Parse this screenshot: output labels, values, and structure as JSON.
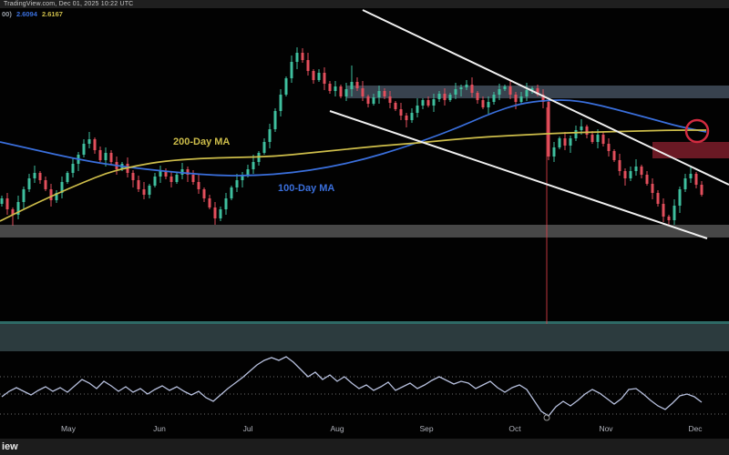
{
  "header": {
    "timestamp": "TradingView.com, Dec 01, 2025 10:22 UTC"
  },
  "legend": {
    "prefix": "00)",
    "ma100_value": "2.6094",
    "ma200_value": "2.6167"
  },
  "labels": {
    "ma200": "200-Day MA",
    "ma100": "100-Day MA"
  },
  "footer": {
    "watermark": "iew"
  },
  "colors": {
    "background": "#020202",
    "bar": "#1f1f1f",
    "candle_up": "#3fbf9e",
    "candle_down": "#e24f5c",
    "ma100": "#3a6fdc",
    "ma200": "#cdbd4a",
    "trendline": "#f0f0f0",
    "event_vline": "#e0404a",
    "highlight_circle": "#d22b40",
    "zone_grey_upper": "#3e4956",
    "zone_red": "#701a26",
    "zone_grey_mid": "#4b4b4b",
    "zone_teal": "#2c3b3e",
    "zone_teal_edge": "#2e6a66",
    "rsi_line": "#b7c0de",
    "rsi_band": "#6f6f6f",
    "axis_text": "#b0b3bc"
  },
  "chart_data": {
    "type": "candlestick",
    "title": "Daily crypto price chart (TradingView dark theme) with 100/200-day moving averages, descending trendlines, supply/demand zones and RSI sub-panel",
    "units": "pixel coordinates of 800x500 screenshot; y increases downward; no numeric price axis is visible",
    "price_panel": {
      "x_range": [
        0,
        800
      ],
      "y_range": [
        11,
        372
      ]
    },
    "candles": {
      "x_start": 2,
      "x_step": 6,
      "body_width": 3,
      "close_y": [
        218,
        230,
        236,
        222,
        208,
        196,
        190,
        198,
        208,
        220,
        212,
        200,
        190,
        180,
        170,
        158,
        153,
        165,
        176,
        168,
        178,
        186,
        180,
        190,
        198,
        208,
        214,
        204,
        194,
        188,
        194,
        200,
        192,
        186,
        192,
        200,
        208,
        218,
        228,
        240,
        230,
        218,
        206,
        198,
        192,
        186,
        178,
        168,
        156,
        142,
        122,
        104,
        86,
        68,
        58,
        66,
        78,
        88,
        80,
        92,
        100,
        95,
        106,
        98,
        90,
        97,
        106,
        114,
        107,
        100,
        106,
        113,
        120,
        127,
        132,
        124,
        116,
        110,
        116,
        109,
        103,
        110,
        104,
        98,
        96,
        93,
        102,
        110,
        118,
        112,
        104,
        98,
        95,
        104,
        112,
        106,
        99,
        97,
        104,
        112,
        172,
        162,
        152,
        160,
        152,
        143,
        139,
        148,
        156,
        148,
        158,
        166,
        176,
        188,
        196,
        188,
        183,
        192,
        202,
        212,
        224,
        238,
        242,
        226,
        208,
        196,
        191,
        203,
        214
      ],
      "rule": "open = previous close; wick lengths cycle through wick_up/wick_down patterns",
      "wick_up": [
        3,
        6,
        2,
        7,
        3,
        5,
        8,
        2,
        4,
        6
      ],
      "wick_down": [
        4,
        2,
        7,
        3,
        6,
        2,
        5,
        8,
        3,
        5
      ],
      "overrides": {
        "2": {
          "low": 248
        },
        "54": {
          "high": 52
        },
        "64": {
          "high": 72
        },
        "100": {
          "high": 108,
          "low": 176
        },
        "122": {
          "low": 247
        }
      }
    },
    "ma100_path": [
      [
        0,
        156
      ],
      [
        40,
        165
      ],
      [
        80,
        174
      ],
      [
        120,
        181
      ],
      [
        160,
        186
      ],
      [
        200,
        190
      ],
      [
        240,
        193
      ],
      [
        280,
        193
      ],
      [
        320,
        190
      ],
      [
        360,
        184
      ],
      [
        400,
        175
      ],
      [
        440,
        163
      ],
      [
        480,
        149
      ],
      [
        510,
        137
      ],
      [
        540,
        124
      ],
      [
        570,
        114
      ],
      [
        600,
        110
      ],
      [
        630,
        110
      ],
      [
        660,
        116
      ],
      [
        690,
        124
      ],
      [
        720,
        132
      ],
      [
        745,
        139
      ],
      [
        775,
        145
      ]
    ],
    "ma200_path": [
      [
        0,
        243
      ],
      [
        30,
        228
      ],
      [
        60,
        214
      ],
      [
        90,
        201
      ],
      [
        120,
        189
      ],
      [
        150,
        182
      ],
      [
        180,
        177
      ],
      [
        220,
        174
      ],
      [
        260,
        173
      ],
      [
        300,
        172
      ],
      [
        340,
        168
      ],
      [
        380,
        164
      ],
      [
        420,
        160
      ],
      [
        460,
        157
      ],
      [
        500,
        153
      ],
      [
        540,
        150
      ],
      [
        580,
        148
      ],
      [
        620,
        146
      ],
      [
        660,
        145
      ],
      [
        700,
        144
      ],
      [
        740,
        143
      ],
      [
        775,
        143
      ]
    ],
    "trendlines": [
      {
        "name": "upper-descending",
        "x1": 398,
        "y1": 11,
        "x2": 800,
        "y2": 203
      },
      {
        "name": "lower-descending",
        "x1": 362,
        "y1": 122,
        "x2": 776,
        "y2": 262
      }
    ],
    "zones": [
      {
        "name": "resistance-zone-upper",
        "x1": 380,
        "x2": 800,
        "y1": 94,
        "y2": 108,
        "color_key": "zone_grey_upper",
        "opacity": 0.9
      },
      {
        "name": "supply-zone-red",
        "x1": 716,
        "x2": 800,
        "y1": 156,
        "y2": 174,
        "color_key": "zone_red",
        "opacity": 0.95
      },
      {
        "name": "support-zone-mid",
        "x1": 0,
        "x2": 800,
        "y1": 247,
        "y2": 261,
        "color_key": "zone_grey_mid",
        "opacity": 0.95
      },
      {
        "name": "demand-zone-teal",
        "x1": 0,
        "x2": 800,
        "y1": 356,
        "y2": 386,
        "color_key": "zone_teal",
        "opacity": 1,
        "top_edge": {
          "y1": 353,
          "y2": 356,
          "color_key": "zone_teal_edge"
        }
      }
    ],
    "event_vline": {
      "x": 600,
      "y1": 118,
      "y2": 356
    },
    "highlight_circle": {
      "cx": 765,
      "cy": 144,
      "r": 12
    },
    "rsi": {
      "x_start": 2,
      "x_step": 8,
      "y": [
        436,
        430,
        426,
        430,
        434,
        429,
        425,
        430,
        426,
        431,
        424,
        417,
        421,
        427,
        419,
        424,
        430,
        425,
        431,
        427,
        433,
        428,
        424,
        429,
        425,
        430,
        434,
        430,
        437,
        441,
        434,
        427,
        421,
        415,
        408,
        401,
        396,
        393,
        396,
        392,
        398,
        406,
        414,
        409,
        417,
        412,
        419,
        414,
        421,
        427,
        423,
        429,
        425,
        420,
        429,
        425,
        421,
        427,
        423,
        418,
        414,
        418,
        422,
        419,
        421,
        427,
        423,
        419,
        426,
        431,
        426,
        423,
        428,
        440,
        452,
        457,
        447,
        441,
        446,
        440,
        433,
        428,
        432,
        438,
        444,
        438,
        428,
        427,
        433,
        440,
        446,
        450,
        443,
        435,
        433,
        436,
        442
      ],
      "bands_y": [
        414,
        433,
        455
      ]
    },
    "time_axis": {
      "y_center": 470,
      "months": [
        {
          "label": "May",
          "x": 75
        },
        {
          "label": "Jun",
          "x": 175
        },
        {
          "label": "Jul",
          "x": 272
        },
        {
          "label": "Aug",
          "x": 370
        },
        {
          "label": "Sep",
          "x": 468
        },
        {
          "label": "Oct",
          "x": 565
        },
        {
          "label": "Nov",
          "x": 665
        },
        {
          "label": "Dec",
          "x": 763
        }
      ],
      "event_marker": {
        "x": 600,
        "y": 459,
        "r": 3
      }
    }
  }
}
